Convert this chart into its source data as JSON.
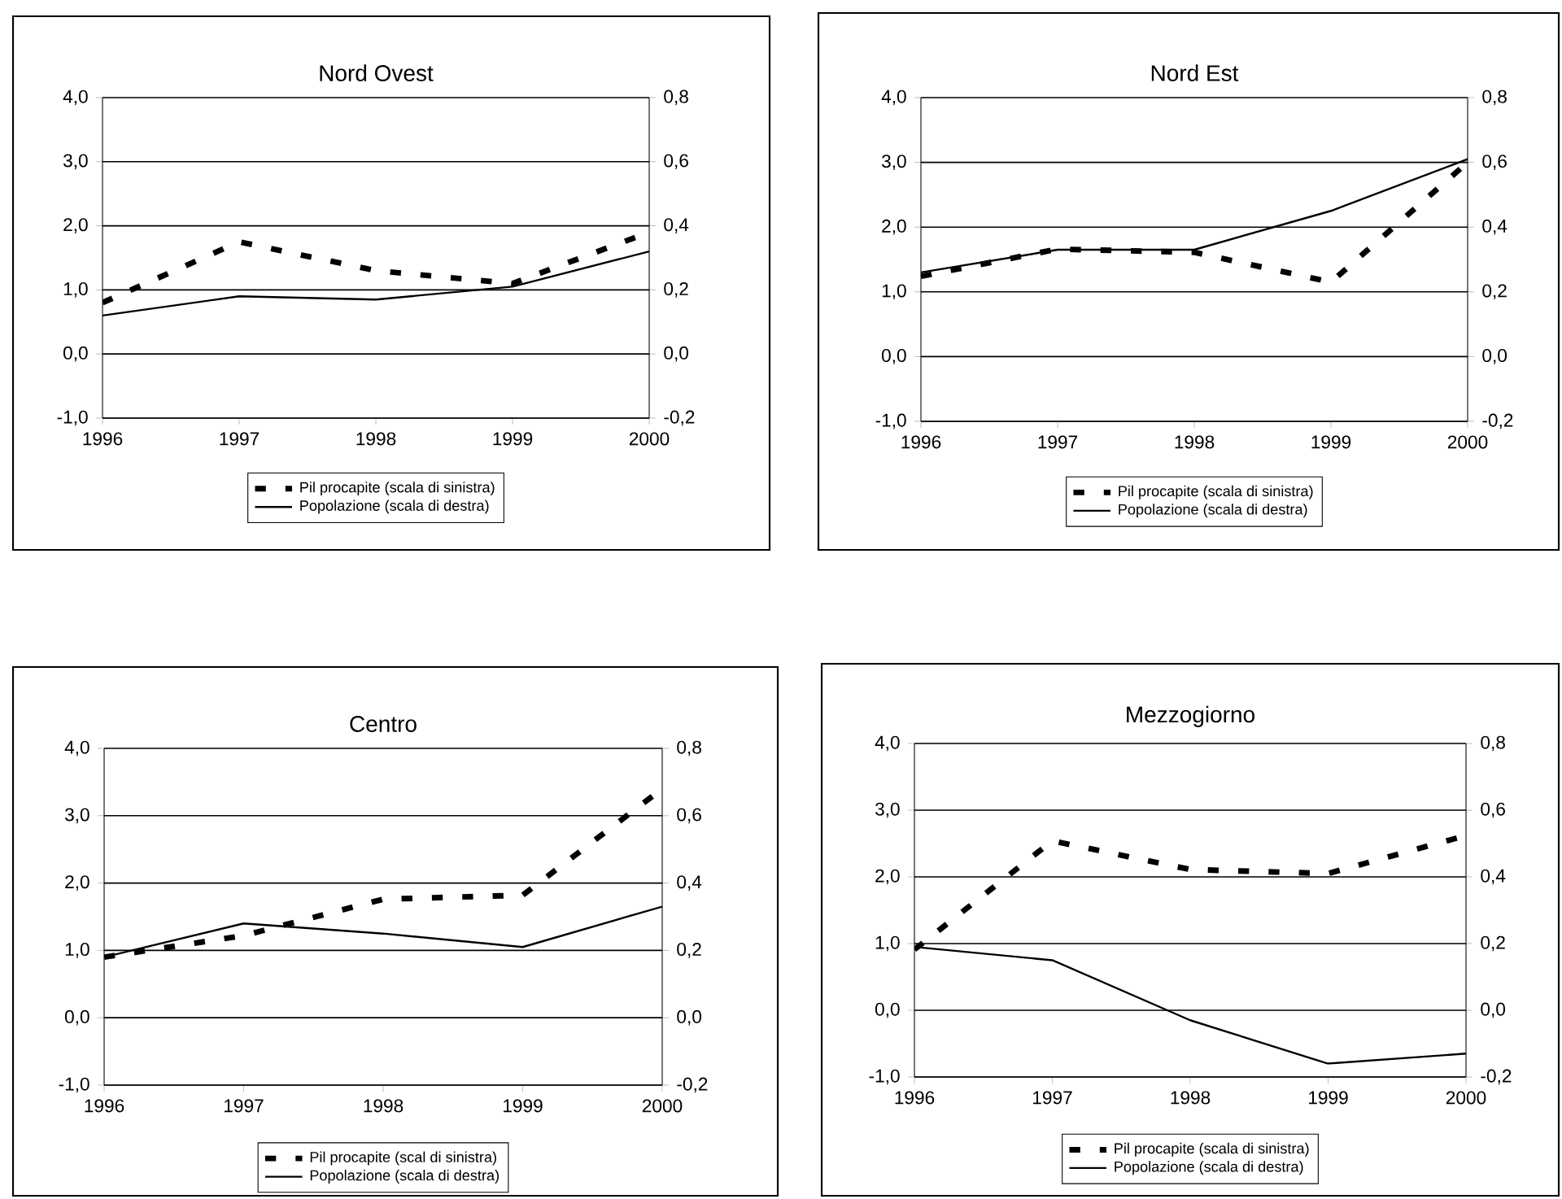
{
  "chart_data": [
    {
      "type": "line",
      "title": "Nord Ovest",
      "x": [
        1996,
        1997,
        1998,
        1999,
        2000
      ],
      "xlim": [
        1996,
        2000
      ],
      "xticks": [
        1996,
        1997,
        1998,
        1999,
        2000
      ],
      "ylim": [
        -1,
        4
      ],
      "yticks": [
        {
          "value": -1,
          "label": "-1,0"
        },
        {
          "value": 0,
          "label": "0,0"
        },
        {
          "value": 1,
          "label": "1,0"
        },
        {
          "value": 2,
          "label": "2,0"
        },
        {
          "value": 3,
          "label": "3,0"
        },
        {
          "value": 4,
          "label": "4,0"
        }
      ],
      "y2lim": [
        -0.2,
        0.8
      ],
      "y2ticks": [
        {
          "value": -0.2,
          "label": "-0,2"
        },
        {
          "value": 0,
          "label": "0,0"
        },
        {
          "value": 0.2,
          "label": "0,2"
        },
        {
          "value": 0.4,
          "label": "0,4"
        },
        {
          "value": 0.6,
          "label": "0,6"
        },
        {
          "value": 0.8,
          "label": "0,8"
        }
      ],
      "grid": "y",
      "legend": "bottom",
      "series": [
        {
          "name": "Pil procapite (scala di sinistra)",
          "color": "#000000",
          "line_style": "dashed",
          "values": [
            0.8,
            1.75,
            1.3,
            1.1,
            1.9
          ]
        },
        {
          "name": "Popolazione (scala di destra)",
          "color": "#000000",
          "line_style": "solid",
          "axis": "y2",
          "values": [
            0.12,
            0.18,
            0.17,
            0.21,
            0.32
          ]
        }
      ]
    },
    {
      "type": "line",
      "title": "Nord Est",
      "x": [
        1996,
        1997,
        1998,
        1999,
        2000
      ],
      "xlim": [
        1996,
        2000
      ],
      "xticks": [
        1996,
        1997,
        1998,
        1999,
        2000
      ],
      "ylim": [
        -1,
        4
      ],
      "yticks": [
        {
          "value": -1,
          "label": "-1,0"
        },
        {
          "value": 0,
          "label": "0,0"
        },
        {
          "value": 1,
          "label": "1,0"
        },
        {
          "value": 2,
          "label": "2,0"
        },
        {
          "value": 3,
          "label": "3,0"
        },
        {
          "value": 4,
          "label": "4,0"
        }
      ],
      "y2lim": [
        -0.2,
        0.8
      ],
      "y2ticks": [
        {
          "value": -0.2,
          "label": "-0,2"
        },
        {
          "value": 0,
          "label": "0,0"
        },
        {
          "value": 0.2,
          "label": "0,2"
        },
        {
          "value": 0.4,
          "label": "0,4"
        },
        {
          "value": 0.6,
          "label": "0,6"
        },
        {
          "value": 0.8,
          "label": "0,8"
        }
      ],
      "grid": "y",
      "legend": "bottom",
      "series": [
        {
          "name": "Pil procapite (scala di sinistra)",
          "color": "#000000",
          "line_style": "dashed",
          "values": [
            1.24,
            1.66,
            1.61,
            1.15,
            3.0
          ]
        },
        {
          "name": "Popolazione (scala di destra)",
          "color": "#000000",
          "line_style": "solid",
          "axis": "y2",
          "values": [
            0.26,
            0.33,
            0.33,
            0.45,
            0.61
          ]
        }
      ]
    },
    {
      "type": "line",
      "title": "Centro",
      "x": [
        1996,
        1997,
        1998,
        1999,
        2000
      ],
      "xlim": [
        1996,
        2000
      ],
      "xticks": [
        1996,
        1997,
        1998,
        1999,
        2000
      ],
      "ylim": [
        -1,
        4
      ],
      "yticks": [
        {
          "value": -1,
          "label": "-1,0"
        },
        {
          "value": 0,
          "label": "0,0"
        },
        {
          "value": 1,
          "label": "1,0"
        },
        {
          "value": 2,
          "label": "2,0"
        },
        {
          "value": 3,
          "label": "3,0"
        },
        {
          "value": 4,
          "label": "4,0"
        }
      ],
      "y2lim": [
        -0.2,
        0.8
      ],
      "y2ticks": [
        {
          "value": -0.2,
          "label": "-0,2"
        },
        {
          "value": 0,
          "label": "0,0"
        },
        {
          "value": 0.2,
          "label": "0,2"
        },
        {
          "value": 0.4,
          "label": "0,4"
        },
        {
          "value": 0.6,
          "label": "0,6"
        },
        {
          "value": 0.8,
          "label": "0,8"
        }
      ],
      "grid": "y",
      "legend": "bottom",
      "series": [
        {
          "name": "Pil procapite (scal di sinistra)",
          "color": "#000000",
          "line_style": "dashed",
          "values": [
            0.9,
            1.22,
            1.76,
            1.82,
            3.4
          ]
        },
        {
          "name": "Popolazione (scala di destra)",
          "color": "#000000",
          "line_style": "solid",
          "axis": "y2",
          "values": [
            0.18,
            0.28,
            0.25,
            0.21,
            0.33
          ]
        }
      ]
    },
    {
      "type": "line",
      "title": "Mezzogiorno",
      "x": [
        1996,
        1997,
        1998,
        1999,
        2000
      ],
      "xlim": [
        1996,
        2000
      ],
      "xticks": [
        1996,
        1997,
        1998,
        1999,
        2000
      ],
      "ylim": [
        -1,
        4
      ],
      "yticks": [
        {
          "value": -1,
          "label": "-1,0"
        },
        {
          "value": 0,
          "label": "0,0"
        },
        {
          "value": 1,
          "label": "1,0"
        },
        {
          "value": 2,
          "label": "2,0"
        },
        {
          "value": 3,
          "label": "3,0"
        },
        {
          "value": 4,
          "label": "4,0"
        }
      ],
      "y2lim": [
        -0.2,
        0.8
      ],
      "y2ticks": [
        {
          "value": -0.2,
          "label": "-0,2"
        },
        {
          "value": 0,
          "label": "0,0"
        },
        {
          "value": 0.2,
          "label": "0,2"
        },
        {
          "value": 0.4,
          "label": "0,4"
        },
        {
          "value": 0.6,
          "label": "0,6"
        },
        {
          "value": 0.8,
          "label": "0,8"
        }
      ],
      "grid": "y",
      "legend": "bottom",
      "series": [
        {
          "name": "Pil procapite (scala di sinistra)",
          "color": "#000000",
          "line_style": "dashed",
          "values": [
            0.91,
            2.54,
            2.11,
            2.05,
            2.62
          ]
        },
        {
          "name": "Popolazione (scala di destra)",
          "color": "#000000",
          "line_style": "solid",
          "axis": "y2",
          "values": [
            0.19,
            0.15,
            -0.03,
            -0.16,
            -0.13
          ]
        }
      ]
    }
  ]
}
